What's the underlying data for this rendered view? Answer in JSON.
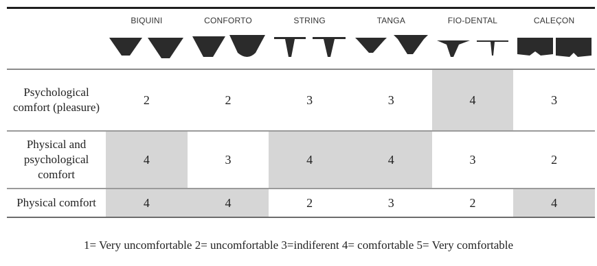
{
  "colors": {
    "shaded_cell": "#d6d6d6",
    "garment": "#2b2b2b"
  },
  "categories": [
    {
      "label": "BIQUINI",
      "icon": "biquini-icon"
    },
    {
      "label": "CONFORTO",
      "icon": "conforto-icon"
    },
    {
      "label": "STRING",
      "icon": "string-icon"
    },
    {
      "label": "TANGA",
      "icon": "tanga-icon"
    },
    {
      "label": "FIO-DENTAL",
      "icon": "fio-dental-icon"
    },
    {
      "label": "CALEÇON",
      "icon": "calecon-icon"
    }
  ],
  "rows": [
    {
      "label": "Psychological comfort (pleasure)",
      "values": [
        "2",
        "2",
        "3",
        "3",
        "4",
        "3"
      ],
      "shaded": [
        false,
        false,
        false,
        false,
        true,
        false
      ]
    },
    {
      "label": "Physical and psychological comfort",
      "values": [
        "4",
        "3",
        "4",
        "4",
        "3",
        "2"
      ],
      "shaded": [
        true,
        false,
        true,
        true,
        false,
        false
      ]
    },
    {
      "label": "Physical comfort",
      "values": [
        "4",
        "4",
        "2",
        "3",
        "2",
        "4"
      ],
      "shaded": [
        true,
        true,
        false,
        false,
        false,
        true
      ]
    }
  ],
  "legend": "1= Very uncomfortable 2= uncomfortable 3=indiferent 4= comfortable 5= Very comfortable"
}
